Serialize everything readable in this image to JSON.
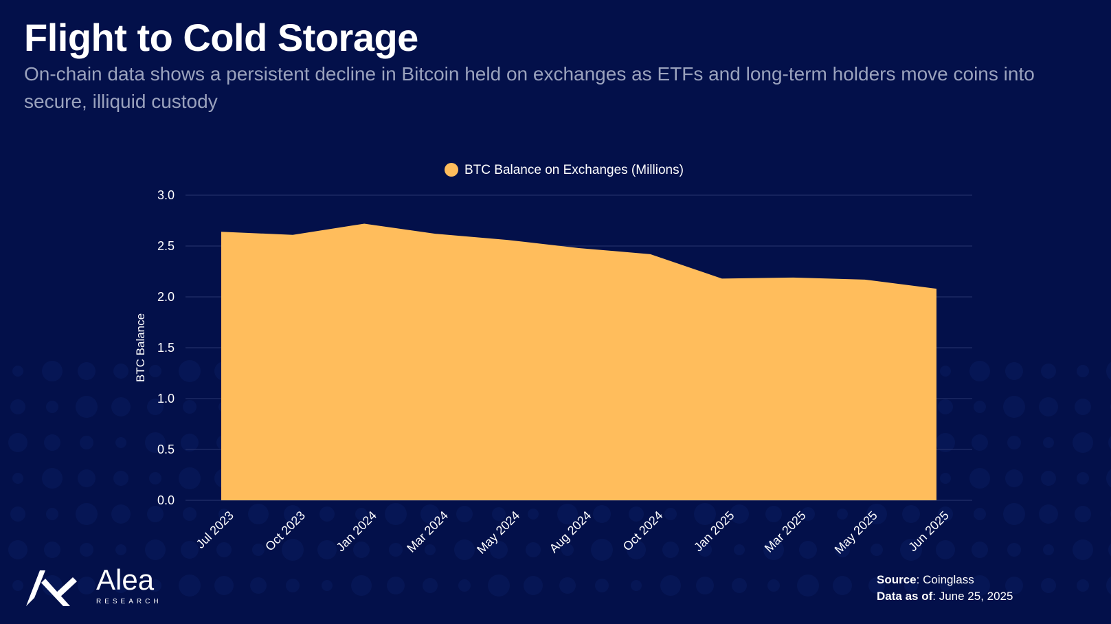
{
  "header": {
    "title": "Flight to Cold Storage",
    "subtitle": "On-chain data shows a persistent decline in Bitcoin held on exchanges as ETFs and long-term holders move coins into secure, illiquid custody"
  },
  "colors": {
    "background": "#03104a",
    "area_fill": "#ffbd5c",
    "gridline": "#2a3670",
    "text": "#ffffff",
    "subtitle": "#9aa2bd"
  },
  "chart_data": {
    "type": "area",
    "title": "",
    "categories": [
      "Jul 2023",
      "Oct 2023",
      "Jan 2024",
      "Mar 2024",
      "May 2024",
      "Aug 2024",
      "Oct 2024",
      "Jan 2025",
      "Mar 2025",
      "May 2025",
      "Jun 2025"
    ],
    "series": [
      {
        "name": "BTC Balance on Exchanges (Millions)",
        "values": [
          2.64,
          2.61,
          2.72,
          2.62,
          2.56,
          2.48,
          2.42,
          2.18,
          2.19,
          2.17,
          2.08
        ]
      }
    ],
    "xlabel": "",
    "ylabel": "BTC Balance",
    "ylim": [
      0,
      3
    ],
    "yticks": [
      0.0,
      0.5,
      1.0,
      1.5,
      2.0,
      2.5,
      3.0
    ],
    "ytick_labels": [
      "0.0",
      "0.5",
      "1.0",
      "1.5",
      "2.0",
      "2.5",
      "3.0"
    ],
    "grid": true,
    "legend_position": "top-center"
  },
  "footer": {
    "logo_name": "Alea",
    "logo_sub": "RESEARCH",
    "source_label": "Source",
    "source_value": ": Coinglass",
    "date_label": "Data as of",
    "date_value": ": June 25, 2025"
  }
}
